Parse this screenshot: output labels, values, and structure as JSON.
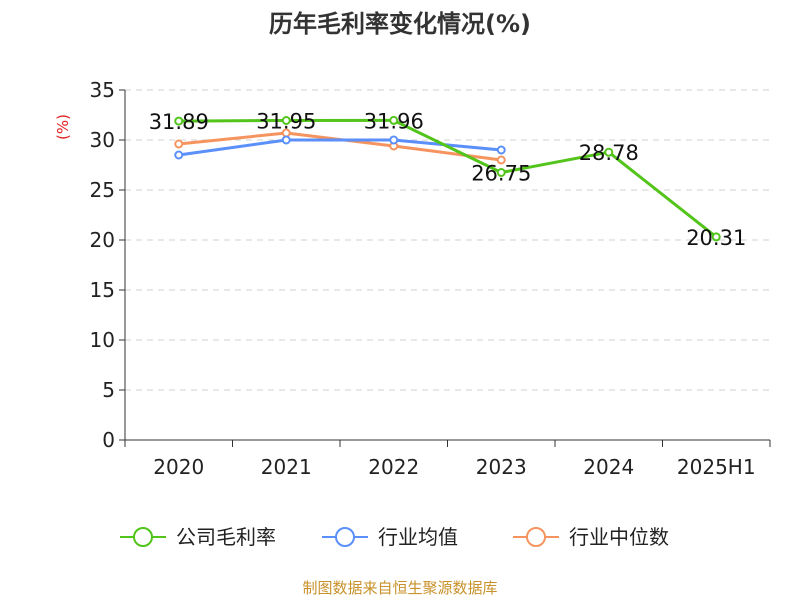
{
  "title": "历年毛利率变化情况(%)",
  "source": "制图数据来自恒生聚源数据库",
  "chart_data": {
    "type": "line",
    "title": "历年毛利率变化情况(%)",
    "ylabel": "(%)",
    "xlabel": "",
    "categories": [
      "2020",
      "2021",
      "2022",
      "2023",
      "2024",
      "2025H1"
    ],
    "ylim": [
      0,
      35
    ],
    "yticks": [
      0,
      5,
      10,
      15,
      20,
      25,
      30,
      35
    ],
    "grid": "horizontal-dashed",
    "legend_position": "bottom",
    "series": [
      {
        "name": "公司毛利率",
        "color": "#52c41a",
        "values": [
          31.89,
          31.95,
          31.96,
          26.75,
          28.78,
          20.31
        ],
        "labels": [
          "31.89",
          "31.95",
          "31.96",
          "26.75",
          "28.78",
          "20.31"
        ]
      },
      {
        "name": "行业均值",
        "color": "#5b8ff9",
        "values": [
          28.5,
          30.0,
          30.0,
          29.0,
          null,
          null
        ]
      },
      {
        "name": "行业中位数",
        "color": "#f6945f",
        "values": [
          29.6,
          30.7,
          29.4,
          28.0,
          null,
          null
        ]
      }
    ]
  }
}
